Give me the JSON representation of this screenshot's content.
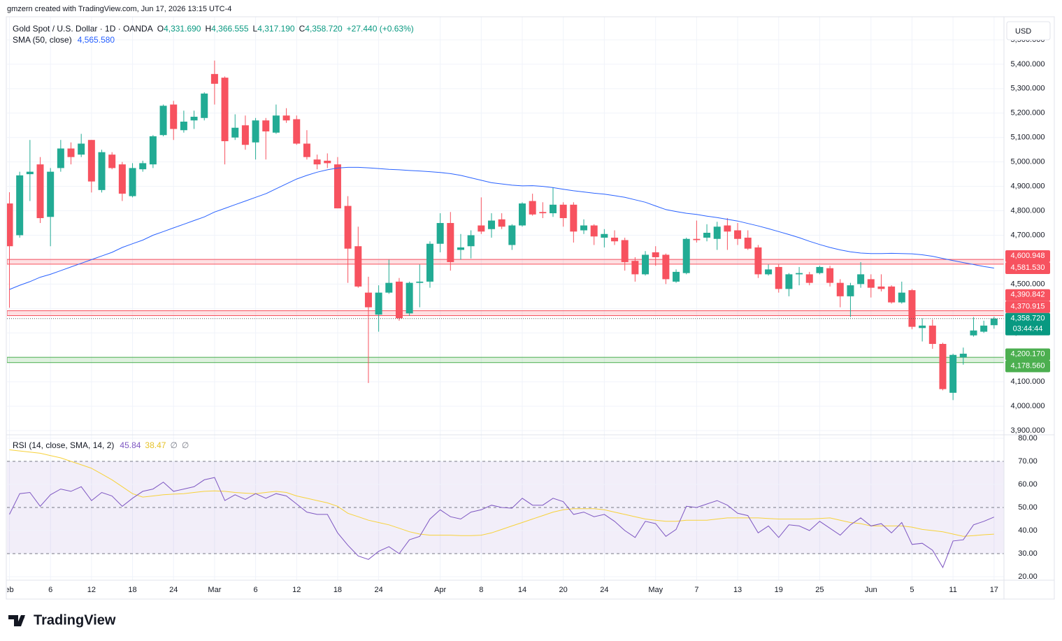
{
  "header": {
    "credit": "gmzern created with TradingView.com, Jun 17, 2026 13:15 UTC-4",
    "brand": "TradingView"
  },
  "chart_data": [
    {
      "type": "candlestick",
      "title": "Gold Spot / U.S. Dollar · 1D · OANDA",
      "ohlc": [
        {
          "key": "O",
          "label": "4,331.690"
        },
        {
          "key": "H",
          "label": "4,366.555"
        },
        {
          "key": "L",
          "label": "4,317.190"
        },
        {
          "key": "C",
          "label": "4,358.720"
        }
      ],
      "change": "+27.440 (+0.63%)",
      "currency": "USD",
      "up_color": "#22ab94",
      "down_color": "#f7525f",
      "categories": [
        "eb",
        null,
        null,
        null,
        "6",
        null,
        null,
        null,
        "12",
        null,
        null,
        null,
        "18",
        null,
        null,
        null,
        "24",
        null,
        null,
        null,
        "Mar",
        null,
        null,
        null,
        "6",
        null,
        null,
        null,
        "12",
        null,
        null,
        null,
        "18",
        null,
        null,
        null,
        "24",
        null,
        null,
        null,
        null,
        null,
        "Apr",
        null,
        null,
        null,
        "8",
        null,
        null,
        null,
        "14",
        null,
        null,
        null,
        "20",
        null,
        null,
        null,
        "24",
        null,
        null,
        null,
        null,
        "May",
        null,
        null,
        null,
        "7",
        null,
        null,
        null,
        "13",
        null,
        null,
        null,
        "19",
        null,
        null,
        null,
        "25",
        null,
        null,
        null,
        null,
        "Jun",
        null,
        null,
        null,
        "5",
        null,
        null,
        null,
        "11",
        null,
        null,
        null,
        "17"
      ],
      "open": [
        4830,
        4700,
        4950,
        4990,
        4775,
        4975,
        5055,
        5030,
        5090,
        4885,
        5030,
        4990,
        4860,
        4970,
        4990,
        5110,
        5235,
        5130,
        5170,
        5180,
        5360,
        5345,
        5100,
        5150,
        5080,
        5170,
        5120,
        5190,
        5175,
        5075,
        5010,
        5005,
        4990,
        4820,
        4655,
        4465,
        4375,
        4465,
        4510,
        4380,
        4505,
        4510,
        4665,
        4750,
        4640,
        4655,
        4740,
        4725,
        4765,
        4660,
        4740,
        4840,
        4795,
        4790,
        4825,
        4825,
        4720,
        4740,
        4690,
        4690,
        4680,
        4595,
        4540,
        4630,
        4620,
        4510,
        4545,
        4685,
        4690,
        4685,
        4740,
        4720,
        4690,
        4650,
        4540,
        4570,
        4480,
        4540,
        4540,
        4545,
        4565,
        4505,
        4450,
        4500,
        4520,
        4490,
        4490,
        4425,
        4475,
        4320,
        4330,
        4255,
        4055,
        4200,
        4290,
        4305,
        4331.69
      ],
      "high": [
        4876,
        4960,
        5090,
        5020,
        4975,
        5090,
        5080,
        5115,
        5090,
        5050,
        5040,
        5000,
        4995,
        5005,
        5110,
        5235,
        5250,
        5210,
        5210,
        5285,
        5415,
        5350,
        5195,
        5190,
        5180,
        5180,
        5235,
        5220,
        5190,
        5130,
        5030,
        5035,
        5020,
        4860,
        4735,
        4530,
        4495,
        4600,
        4525,
        4510,
        4580,
        4675,
        4790,
        4795,
        4705,
        4720,
        4855,
        4790,
        4790,
        4745,
        4835,
        4870,
        4835,
        4895,
        4835,
        4835,
        4765,
        4745,
        4725,
        4720,
        4690,
        4610,
        4635,
        4655,
        4625,
        4560,
        4690,
        4760,
        4745,
        4755,
        4770,
        4750,
        4720,
        4660,
        4580,
        4580,
        4545,
        4570,
        4550,
        4575,
        4575,
        4520,
        4505,
        4590,
        4540,
        4540,
        4495,
        4510,
        4480,
        4360,
        4355,
        4260,
        4215,
        4240,
        4365,
        4350,
        4366.555
      ],
      "low": [
        4403,
        4690,
        4840,
        4750,
        4655,
        4960,
        4990,
        5020,
        4875,
        4875,
        4970,
        4840,
        4855,
        4960,
        4975,
        5105,
        5090,
        5120,
        5135,
        5170,
        5235,
        4990,
        5090,
        5050,
        5010,
        5010,
        5115,
        5160,
        5070,
        5010,
        4970,
        4975,
        4810,
        4505,
        4485,
        4095,
        4305,
        4460,
        4350,
        4370,
        4405,
        4485,
        4630,
        4555,
        4600,
        4605,
        4705,
        4690,
        4725,
        4640,
        4735,
        4780,
        4770,
        4775,
        4735,
        4670,
        4705,
        4660,
        4650,
        4660,
        4555,
        4510,
        4535,
        4575,
        4500,
        4505,
        4540,
        4670,
        4675,
        4640,
        4640,
        4660,
        4640,
        4525,
        4535,
        4465,
        4450,
        4495,
        4495,
        4540,
        4490,
        4405,
        4365,
        4485,
        4445,
        4470,
        4420,
        4420,
        4315,
        4265,
        4235,
        4065,
        4025,
        4170,
        4285,
        4300,
        4317.19
      ],
      "close": [
        4655,
        4945,
        4960,
        4770,
        4960,
        5055,
        5020,
        5075,
        4920,
        5040,
        4975,
        4870,
        4975,
        4995,
        5105,
        5230,
        5135,
        5165,
        5185,
        5280,
        5320,
        5085,
        5140,
        5070,
        5170,
        5125,
        5190,
        5170,
        5075,
        5020,
        4990,
        4995,
        4810,
        4645,
        4490,
        4405,
        4465,
        4505,
        4360,
        4505,
        4510,
        4665,
        4750,
        4590,
        4650,
        4700,
        4715,
        4760,
        4735,
        4740,
        4830,
        4785,
        4790,
        4825,
        4770,
        4715,
        4740,
        4695,
        4705,
        4675,
        4590,
        4540,
        4620,
        4610,
        4520,
        4550,
        4685,
        4680,
        4710,
        4735,
        4715,
        4685,
        4645,
        4540,
        4560,
        4480,
        4540,
        4545,
        4505,
        4570,
        4505,
        4450,
        4495,
        4540,
        4485,
        4480,
        4425,
        4465,
        4325,
        4330,
        4255,
        4070,
        4210,
        4215,
        4310,
        4330,
        4358.72
      ],
      "overlays": [
        {
          "name": "SMA (50, close)",
          "value_label": "4,565.580",
          "color": "#2962ff",
          "values": [
            4478,
            4495,
            4510,
            4528,
            4540,
            4555,
            4570,
            4585,
            4600,
            4615,
            4630,
            4650,
            4665,
            4680,
            4700,
            4715,
            4730,
            4745,
            4760,
            4775,
            4795,
            4810,
            4825,
            4840,
            4855,
            4870,
            4890,
            4910,
            4930,
            4945,
            4958,
            4968,
            4975,
            4978,
            4978,
            4976,
            4973,
            4970,
            4968,
            4965,
            4963,
            4960,
            4957,
            4952,
            4945,
            4935,
            4925,
            4915,
            4910,
            4905,
            4902,
            4903,
            4900,
            4895,
            4888,
            4882,
            4877,
            4872,
            4868,
            4862,
            4855,
            4845,
            4835,
            4820,
            4805,
            4797,
            4790,
            4785,
            4778,
            4772,
            4765,
            4758,
            4748,
            4738,
            4727,
            4715,
            4703,
            4690,
            4675,
            4662,
            4650,
            4640,
            4632,
            4627,
            4625,
            4625,
            4626,
            4625,
            4624,
            4620,
            4614,
            4605,
            4596,
            4588,
            4580,
            4572,
            4565.58
          ]
        }
      ],
      "levels": [
        {
          "values": [
            4581.53,
            4600.948
          ],
          "labels": [
            "4,581.530",
            "4,600.948"
          ],
          "color": "#f7525f"
        },
        {
          "values": [
            4370.915,
            4390.842
          ],
          "labels": [
            "4,370.915",
            "4,390.842"
          ],
          "color": "#f7525f"
        },
        {
          "values": [
            4178.56,
            4200.17
          ],
          "labels": [
            "4,178.560",
            "4,200.170"
          ],
          "color": "#4caf50"
        }
      ],
      "last_price": {
        "value": 4358.72,
        "label": "4,358.720",
        "countdown": "03:44:44",
        "color": "#089981"
      },
      "ylim": [
        3883,
        5600
      ],
      "yticks": [
        {
          "value": 3900,
          "label": "3,900.000"
        },
        {
          "value": 4000,
          "label": "4,000.000"
        },
        {
          "value": 4100,
          "label": "4,100.000"
        },
        {
          "value": 4200,
          "label": "4,200.000"
        },
        {
          "value": 4300,
          "label": "4,300.000"
        },
        {
          "value": 4400,
          "label": "4,400.000"
        },
        {
          "value": 4500,
          "label": "4,500.000"
        },
        {
          "value": 4600,
          "label": "4,600.000"
        },
        {
          "value": 4700,
          "label": "4,700.000"
        },
        {
          "value": 4800,
          "label": "4,800.000"
        },
        {
          "value": 4900,
          "label": "4,900.000"
        },
        {
          "value": 5000,
          "label": "5,000.000"
        },
        {
          "value": 5100,
          "label": "5,100.000"
        },
        {
          "value": 5200,
          "label": "5,200.000"
        },
        {
          "value": 5300,
          "label": "5,300.000"
        },
        {
          "value": 5400,
          "label": "5,400.000"
        },
        {
          "value": 5500,
          "label": "5,500.000"
        }
      ],
      "grid": true
    },
    {
      "type": "line",
      "title": "RSI (14, close, SMA, 14, 2)",
      "extra_labels": [
        "∅",
        "∅"
      ],
      "series": [
        {
          "color": "#7e57c2",
          "value_label": "45.84",
          "values": [
            47,
            56,
            56.5,
            50.5,
            55.5,
            58,
            57,
            59,
            53,
            56.5,
            55,
            50.5,
            54,
            57,
            58,
            61,
            57,
            58,
            59,
            62,
            63,
            53,
            55.5,
            53.5,
            56,
            54,
            56,
            55,
            51.5,
            48,
            47,
            47,
            39,
            33.6,
            29,
            27.5,
            31,
            33,
            30,
            36,
            37.5,
            45,
            49,
            46,
            45,
            48,
            49,
            51,
            50,
            49.7,
            54,
            51,
            51,
            54,
            52.5,
            47,
            48,
            46,
            47,
            44,
            40,
            37,
            44,
            43,
            37.5,
            40.5,
            50.5,
            50,
            51.5,
            53,
            51,
            47.5,
            46.5,
            39,
            42,
            37,
            42.5,
            42,
            40,
            44,
            41,
            38,
            42.5,
            45.5,
            42,
            43,
            39,
            43.5,
            34,
            34.5,
            31.5,
            24,
            35.5,
            36,
            42.5,
            44,
            45.84
          ]
        },
        {
          "color": "#f7d23b",
          "value_label": "38.47",
          "values": [
            75,
            74.5,
            74,
            73.5,
            72.5,
            71.5,
            70,
            68.5,
            67,
            64.5,
            62,
            59,
            56,
            54.5,
            55,
            55.5,
            55.8,
            56,
            56.5,
            57,
            57.2,
            57,
            56.5,
            56.2,
            56,
            56.5,
            57,
            56.5,
            55,
            54,
            53,
            52,
            50.5,
            47.5,
            46,
            44.5,
            43.5,
            42.5,
            41,
            39.5,
            38.5,
            38,
            38,
            38,
            37.8,
            37.8,
            38,
            39,
            40.5,
            42,
            43.5,
            45,
            46.5,
            48,
            49,
            49.5,
            49.5,
            49.5,
            49,
            48,
            47,
            46,
            45,
            44.5,
            44,
            44,
            44.5,
            44.5,
            44.5,
            45,
            45.5,
            45.5,
            45.5,
            45.5,
            45.2,
            45,
            45,
            45,
            45,
            45.2,
            45.5,
            44.5,
            43.5,
            43,
            42,
            42,
            42,
            42,
            41.5,
            40.5,
            40,
            39.5,
            38.5,
            37.5,
            37.8,
            38.2,
            38.47
          ]
        }
      ],
      "band": [
        30,
        70
      ],
      "dashed_levels": [
        30,
        50,
        70
      ],
      "ylim": [
        18.5,
        81.5
      ],
      "yticks": [
        {
          "value": 20,
          "label": "20.00"
        },
        {
          "value": 30,
          "label": "30.00"
        },
        {
          "value": 40,
          "label": "40.00"
        },
        {
          "value": 50,
          "label": "50.00"
        },
        {
          "value": 60,
          "label": "60.00"
        },
        {
          "value": 70,
          "label": "70.00"
        },
        {
          "value": 80,
          "label": "80.00"
        }
      ],
      "grid": true
    }
  ]
}
